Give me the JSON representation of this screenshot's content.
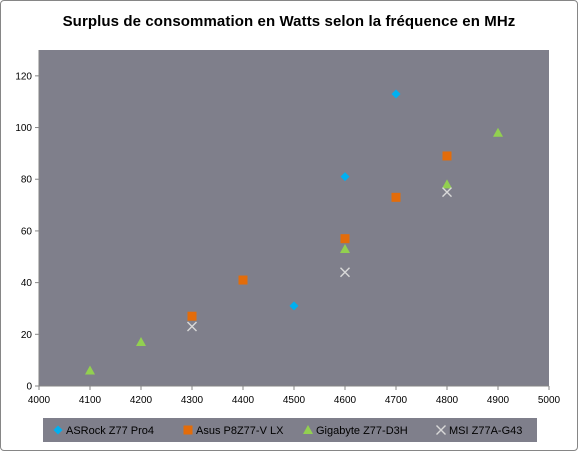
{
  "chart_data": {
    "type": "scatter",
    "title": "Surplus de consommation  en Watts selon la fréquence en MHz",
    "xlabel": "",
    "ylabel": "",
    "xlim": [
      4000,
      5000
    ],
    "ylim": [
      0,
      130
    ],
    "x_ticks": [
      4000,
      4100,
      4200,
      4300,
      4400,
      4500,
      4600,
      4700,
      4800,
      4900,
      5000
    ],
    "y_ticks": [
      0,
      20,
      40,
      60,
      80,
      100,
      120
    ],
    "grid": false,
    "legend_position": "bottom",
    "plot_background": "#7f7f8b",
    "series": [
      {
        "name": "ASRock Z77 Pro4",
        "marker": "diamond",
        "color": "#00b0f0",
        "points": [
          [
            4500,
            31
          ],
          [
            4600,
            81
          ],
          [
            4700,
            113
          ]
        ]
      },
      {
        "name": "Asus P8Z77-V LX",
        "marker": "square",
        "color": "#e36c0a",
        "points": [
          [
            4300,
            27
          ],
          [
            4400,
            41
          ],
          [
            4600,
            57
          ],
          [
            4700,
            73
          ],
          [
            4800,
            89
          ]
        ]
      },
      {
        "name": "Gigabyte Z77-D3H",
        "marker": "triangle",
        "color": "#92d050",
        "points": [
          [
            4100,
            6
          ],
          [
            4200,
            17
          ],
          [
            4600,
            53
          ],
          [
            4800,
            78
          ],
          [
            4900,
            98
          ]
        ]
      },
      {
        "name": "MSI Z77A-G43",
        "marker": "x",
        "color": "#d9d9d9",
        "points": [
          [
            4300,
            23
          ],
          [
            4600,
            44
          ],
          [
            4800,
            75
          ]
        ]
      }
    ]
  }
}
